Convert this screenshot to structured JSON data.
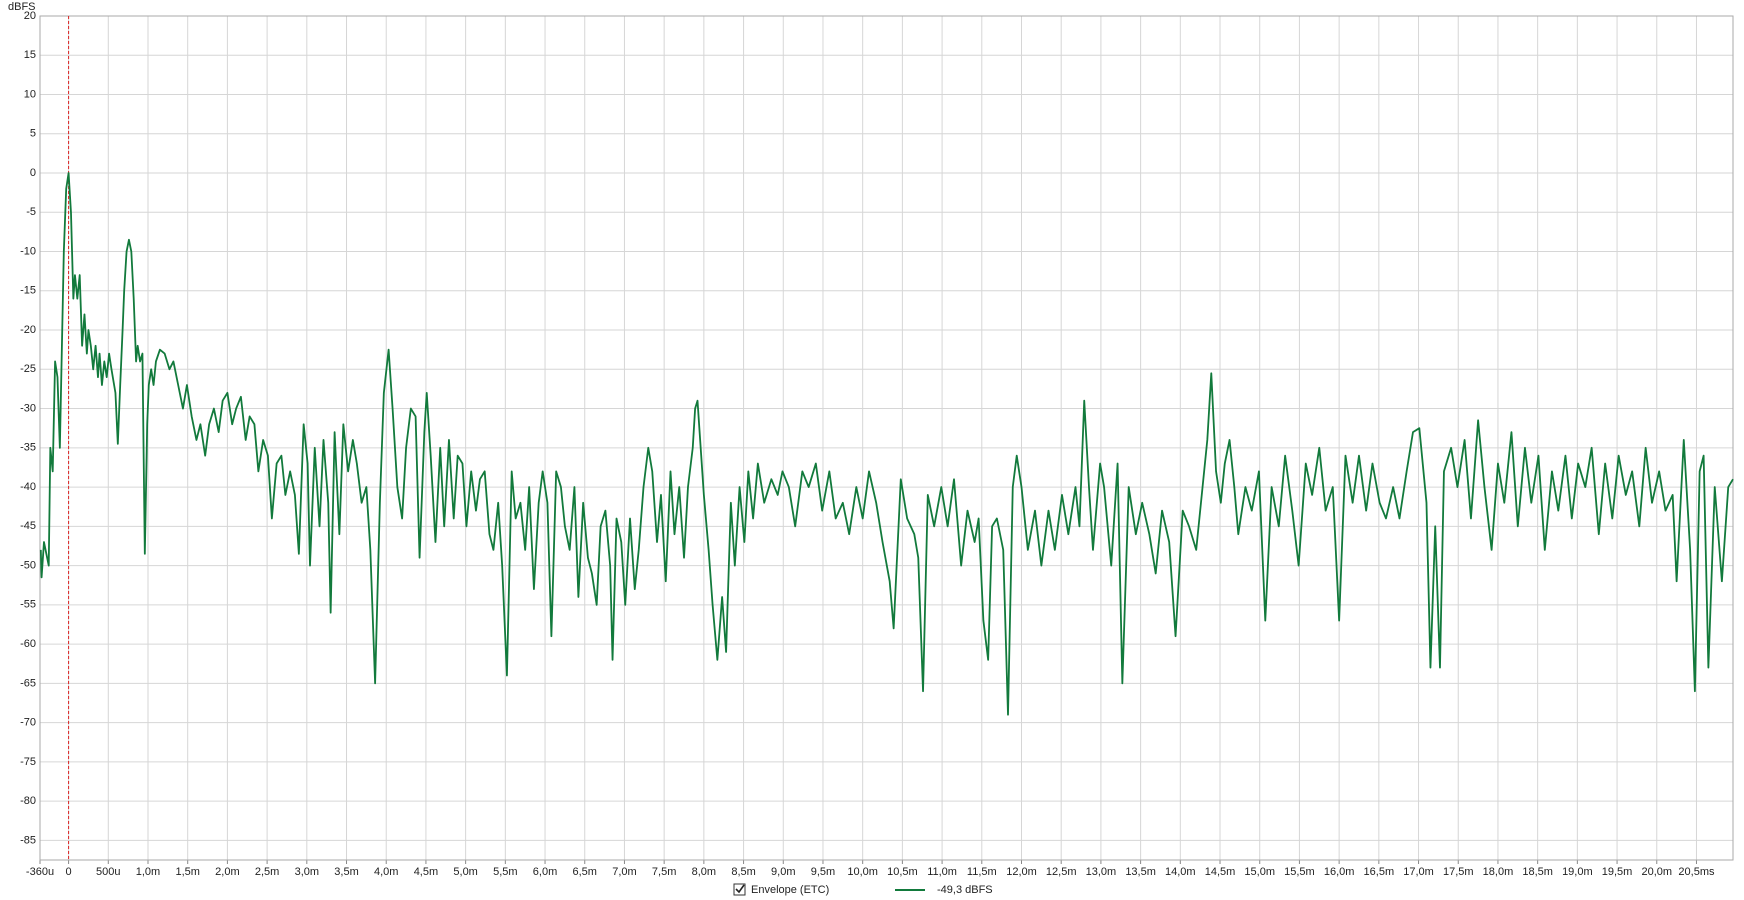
{
  "chart_data": {
    "type": "line",
    "y_axis_label": "dBFS",
    "xlim": [
      -0.36,
      20.96
    ],
    "ylim": [
      -87.5,
      20
    ],
    "grid": true,
    "xticks": [
      {
        "value": -0.36,
        "label": "-360u"
      },
      0,
      {
        "value": 0.5,
        "label": "500u"
      },
      {
        "value": 1,
        "label": "1,0m"
      },
      {
        "value": 1.5,
        "label": "1,5m"
      },
      {
        "value": 2,
        "label": "2,0m"
      },
      {
        "value": 2.5,
        "label": "2,5m"
      },
      {
        "value": 3,
        "label": "3,0m"
      },
      {
        "value": 3.5,
        "label": "3,5m"
      },
      {
        "value": 4,
        "label": "4,0m"
      },
      {
        "value": 4.5,
        "label": "4,5m"
      },
      {
        "value": 5,
        "label": "5,0m"
      },
      {
        "value": 5.5,
        "label": "5,5m"
      },
      {
        "value": 6,
        "label": "6,0m"
      },
      {
        "value": 6.5,
        "label": "6,5m"
      },
      {
        "value": 7,
        "label": "7,0m"
      },
      {
        "value": 7.5,
        "label": "7,5m"
      },
      {
        "value": 8,
        "label": "8,0m"
      },
      {
        "value": 8.5,
        "label": "8,5m"
      },
      {
        "value": 9,
        "label": "9,0m"
      },
      {
        "value": 9.5,
        "label": "9,5m"
      },
      {
        "value": 10,
        "label": "10,0m"
      },
      {
        "value": 10.5,
        "label": "10,5m"
      },
      {
        "value": 11,
        "label": "11,0m"
      },
      {
        "value": 11.5,
        "label": "11,5m"
      },
      {
        "value": 12,
        "label": "12,0m"
      },
      {
        "value": 12.5,
        "label": "12,5m"
      },
      {
        "value": 13,
        "label": "13,0m"
      },
      {
        "value": 13.5,
        "label": "13,5m"
      },
      {
        "value": 14,
        "label": "14,0m"
      },
      {
        "value": 14.5,
        "label": "14,5m"
      },
      {
        "value": 15,
        "label": "15,0m"
      },
      {
        "value": 15.5,
        "label": "15,5m"
      },
      {
        "value": 16,
        "label": "16,0m"
      },
      {
        "value": 16.5,
        "label": "16,5m"
      },
      {
        "value": 17,
        "label": "17,0m"
      },
      {
        "value": 17.5,
        "label": "17,5m"
      },
      {
        "value": 18,
        "label": "18,0m"
      },
      {
        "value": 18.5,
        "label": "18,5m"
      },
      {
        "value": 19,
        "label": "19,0m"
      },
      {
        "value": 19.5,
        "label": "19,5m"
      },
      {
        "value": 20,
        "label": "20,0m"
      },
      {
        "value": 20.5,
        "label": "20,5ms"
      }
    ],
    "yticks": [
      20,
      15,
      10,
      5,
      0,
      -5,
      -10,
      -15,
      -20,
      -25,
      -30,
      -35,
      -40,
      -45,
      -50,
      -55,
      -60,
      -65,
      -70,
      -75,
      -80,
      -85
    ],
    "x": [
      -0.35,
      -0.34,
      -0.31,
      -0.25,
      -0.23,
      -0.2,
      -0.17,
      -0.14,
      -0.11,
      -0.08,
      -0.06,
      -0.03,
      0,
      0.03,
      0.06,
      0.08,
      0.11,
      0.14,
      0.17,
      0.2,
      0.23,
      0.25,
      0.28,
      0.31,
      0.34,
      0.37,
      0.39,
      0.42,
      0.45,
      0.48,
      0.51,
      0.54,
      0.59,
      0.62,
      0.65,
      0.68,
      0.7,
      0.73,
      0.76,
      0.79,
      0.82,
      0.85,
      0.87,
      0.9,
      0.93,
      0.96,
      0.99,
      1.01,
      1.04,
      1.07,
      1.1,
      1.15,
      1.21,
      1.27,
      1.32,
      1.38,
      1.44,
      1.49,
      1.55,
      1.61,
      1.66,
      1.72,
      1.77,
      1.83,
      1.89,
      1.94,
      2.0,
      2.06,
      2.11,
      2.17,
      2.23,
      2.28,
      2.34,
      2.39,
      2.45,
      2.51,
      2.56,
      2.62,
      2.68,
      2.73,
      2.79,
      2.85,
      2.9,
      2.96,
      3.01,
      3.04,
      3.1,
      3.16,
      3.21,
      3.27,
      3.3,
      3.35,
      3.41,
      3.46,
      3.52,
      3.58,
      3.63,
      3.69,
      3.75,
      3.8,
      3.86,
      3.92,
      3.97,
      4.03,
      4.08,
      4.14,
      4.2,
      4.25,
      4.31,
      4.37,
      4.42,
      4.48,
      4.51,
      4.56,
      4.62,
      4.68,
      4.73,
      4.79,
      4.85,
      4.9,
      4.96,
      5.01,
      5.07,
      5.13,
      5.18,
      5.24,
      5.3,
      5.35,
      5.41,
      5.46,
      5.52,
      5.58,
      5.63,
      5.69,
      5.75,
      5.8,
      5.86,
      5.92,
      5.97,
      6.03,
      6.08,
      6.14,
      6.2,
      6.25,
      6.31,
      6.37,
      6.42,
      6.48,
      6.54,
      6.59,
      6.65,
      6.7,
      6.76,
      6.82,
      6.85,
      6.9,
      6.96,
      7.01,
      7.07,
      7.13,
      7.18,
      7.24,
      7.3,
      7.35,
      7.41,
      7.46,
      7.52,
      7.58,
      7.63,
      7.69,
      7.75,
      7.8,
      7.86,
      7.89,
      7.92,
      7.94,
      8.0,
      8.06,
      8.11,
      8.17,
      8.23,
      8.28,
      8.34,
      8.39,
      8.45,
      8.51,
      8.56,
      8.62,
      8.68,
      8.76,
      8.85,
      8.93,
      8.99,
      9.07,
      9.15,
      9.24,
      9.32,
      9.41,
      9.49,
      9.58,
      9.66,
      9.75,
      9.83,
      9.92,
      10.0,
      10.08,
      10.17,
      10.25,
      10.34,
      10.39,
      10.48,
      10.56,
      10.65,
      10.7,
      10.76,
      10.82,
      10.9,
      10.99,
      11.07,
      11.15,
      11.24,
      11.32,
      11.41,
      11.46,
      11.52,
      11.58,
      11.63,
      11.69,
      11.77,
      11.83,
      11.89,
      11.94,
      12.0,
      12.08,
      12.17,
      12.25,
      12.34,
      12.42,
      12.51,
      12.59,
      12.68,
      12.73,
      12.79,
      12.85,
      12.9,
      12.99,
      13.04,
      13.13,
      13.21,
      13.27,
      13.35,
      13.44,
      13.52,
      13.61,
      13.69,
      13.77,
      13.86,
      13.94,
      14.03,
      14.11,
      14.2,
      14.28,
      14.34,
      14.39,
      14.45,
      14.51,
      14.56,
      14.62,
      14.68,
      14.73,
      14.82,
      14.9,
      14.99,
      15.07,
      15.15,
      15.24,
      15.32,
      15.41,
      15.49,
      15.58,
      15.66,
      15.75,
      15.83,
      15.92,
      16.0,
      16.08,
      16.17,
      16.25,
      16.34,
      16.42,
      16.51,
      16.59,
      16.68,
      16.76,
      16.85,
      16.93,
      17.01,
      17.1,
      17.15,
      17.21,
      17.27,
      17.32,
      17.41,
      17.49,
      17.58,
      17.66,
      17.75,
      17.83,
      17.92,
      18.0,
      18.08,
      18.17,
      18.25,
      18.34,
      18.42,
      18.51,
      18.59,
      18.68,
      18.76,
      18.85,
      18.93,
      19.01,
      19.1,
      19.18,
      19.27,
      19.35,
      19.44,
      19.52,
      19.61,
      19.69,
      19.78,
      19.86,
      19.94,
      20.03,
      20.11,
      20.2,
      20.25,
      20.34,
      20.42,
      20.48,
      20.54,
      20.59,
      20.65,
      20.73,
      20.82,
      20.9,
      20.96
    ],
    "series": [
      {
        "name": "Envelope (ETC)",
        "color": "#127a3c",
        "values": [
          -48,
          -51.5,
          -47,
          -50,
          -35,
          -38,
          -24,
          -26,
          -35,
          -20,
          -10,
          -2,
          0,
          -5,
          -16,
          -13,
          -16,
          -13,
          -22,
          -18,
          -23,
          -20,
          -22,
          -25,
          -22,
          -26,
          -23,
          -27,
          -24,
          -26,
          -23,
          -25,
          -28,
          -34.5,
          -27,
          -20,
          -15,
          -10,
          -8.5,
          -10,
          -16,
          -24,
          -22,
          -24,
          -23,
          -48.5,
          -32,
          -27,
          -25,
          -27,
          -24,
          -22.5,
          -23,
          -25,
          -24,
          -27,
          -30,
          -27,
          -31,
          -34,
          -32,
          -36,
          -32,
          -30,
          -33,
          -29,
          -28,
          -32,
          -30,
          -28.5,
          -34,
          -31,
          -32,
          -38,
          -34,
          -36,
          -44,
          -37,
          -36,
          -41,
          -38,
          -41,
          -48.5,
          -32,
          -37,
          -50,
          -35,
          -45,
          -34,
          -42,
          -56,
          -33,
          -46,
          -32,
          -38,
          -34,
          -37,
          -42,
          -40,
          -48,
          -65,
          -42,
          -28,
          -22.5,
          -30,
          -40,
          -44,
          -35,
          -30,
          -31,
          -49,
          -33,
          -28,
          -36,
          -47,
          -35,
          -45,
          -34,
          -44,
          -36,
          -37,
          -45,
          -38,
          -43,
          -39,
          -38,
          -46,
          -48,
          -42,
          -50,
          -64,
          -38,
          -44,
          -42,
          -48,
          -40,
          -53,
          -42,
          -38,
          -42,
          -59,
          -38,
          -40,
          -45,
          -48,
          -40,
          -54,
          -42,
          -49,
          -51,
          -55,
          -45,
          -43,
          -50,
          -62,
          -44,
          -47,
          -55,
          -44,
          -53,
          -48,
          -40,
          -35,
          -38,
          -47,
          -41,
          -52,
          -38,
          -46,
          -40,
          -49,
          -40,
          -35,
          -30,
          -29,
          -32,
          -41,
          -48,
          -55,
          -62,
          -54,
          -61,
          -42,
          -50,
          -40,
          -47,
          -38,
          -44,
          -37,
          -42,
          -39,
          -41,
          -38,
          -40,
          -45,
          -38,
          -40,
          -37,
          -43,
          -38,
          -44,
          -42,
          -46,
          -40,
          -44,
          -38,
          -42,
          -47,
          -52,
          -58,
          -39,
          -44,
          -46,
          -49,
          -66,
          -41,
          -45,
          -40,
          -45,
          -39,
          -50,
          -43,
          -47,
          -44,
          -57,
          -62,
          -45,
          -44,
          -48,
          -69,
          -40,
          -36,
          -40,
          -48,
          -43,
          -50,
          -43,
          -48,
          -41,
          -46,
          -40,
          -45,
          -29,
          -40,
          -48,
          -37,
          -40,
          -50,
          -37,
          -65,
          -40,
          -46,
          -42,
          -46,
          -51,
          -43,
          -47,
          -59,
          -43,
          -45,
          -48,
          -40,
          -34,
          -25.5,
          -38,
          -42,
          -37,
          -34,
          -40,
          -46,
          -40,
          -43,
          -38,
          -57,
          -40,
          -45,
          -36,
          -43,
          -50,
          -37,
          -41,
          -35,
          -43,
          -40,
          -57,
          -36,
          -42,
          -36,
          -43,
          -37,
          -42,
          -44,
          -40,
          -44,
          -38,
          -33,
          -32.5,
          -42,
          -63,
          -45,
          -63,
          -38,
          -35,
          -40,
          -34,
          -44,
          -31.5,
          -40,
          -48,
          -37,
          -42,
          -33,
          -45,
          -35,
          -42,
          -36,
          -48,
          -38,
          -43,
          -36,
          -44,
          -37,
          -40,
          -35,
          -46,
          -37,
          -44,
          -36,
          -41,
          -38,
          -45,
          -35,
          -42,
          -38,
          -43,
          -41,
          -52,
          -34,
          -48,
          -66,
          -38,
          -36,
          -63,
          -40,
          -52,
          -40,
          -39
        ]
      }
    ],
    "cursor_readout": "-49,3 dBFS"
  }
}
